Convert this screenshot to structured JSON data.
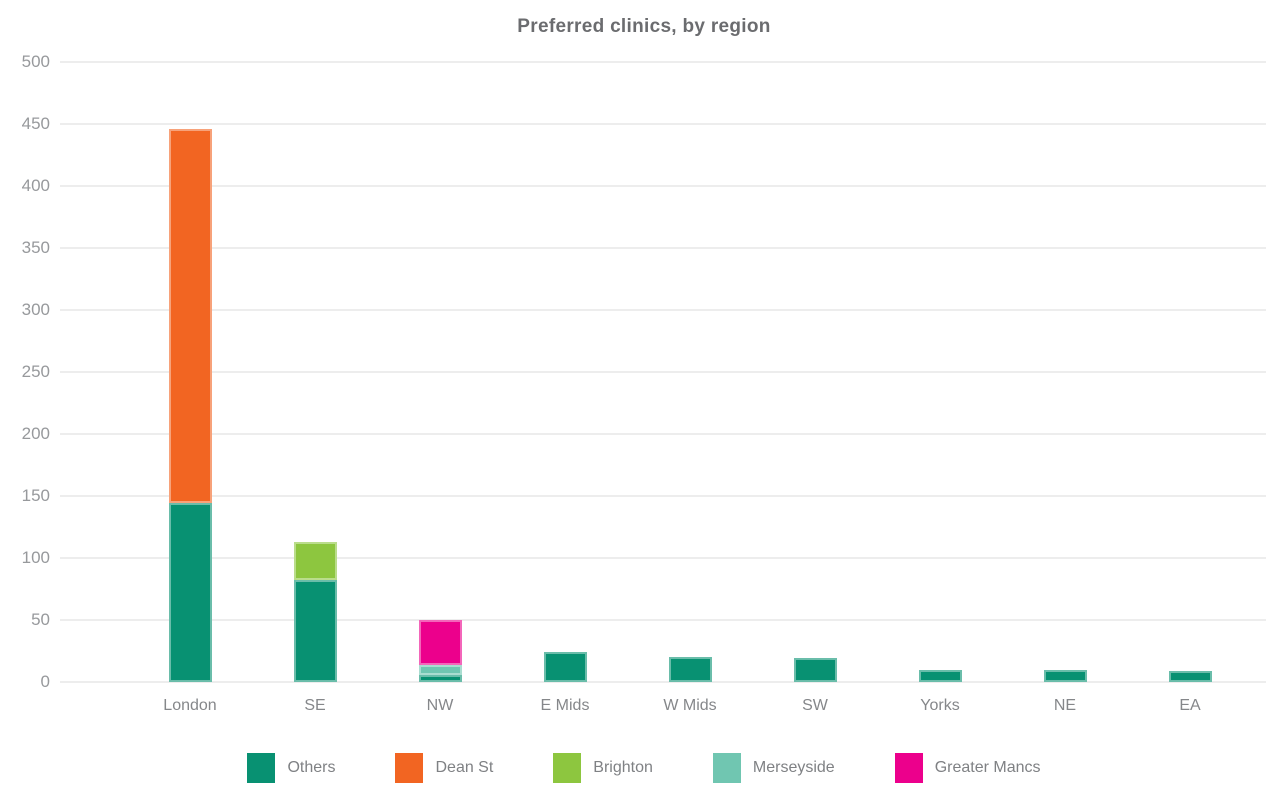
{
  "chart_data": {
    "type": "bar",
    "stacked": true,
    "title": "Preferred clinics, by region",
    "categories": [
      "London",
      "SE",
      "NW",
      "E Mids",
      "W Mids",
      "SW",
      "Yorks",
      "NE",
      "EA"
    ],
    "series": [
      {
        "name": "Others",
        "color": "#089172",
        "values": [
          144,
          82,
          6,
          24,
          20,
          19,
          10,
          10,
          9
        ]
      },
      {
        "name": "Dean St",
        "color": "#F26522",
        "values": [
          302,
          0,
          0,
          0,
          0,
          0,
          0,
          0,
          0
        ]
      },
      {
        "name": "Brighton",
        "color": "#8DC63F",
        "values": [
          0,
          31,
          0,
          0,
          0,
          0,
          0,
          0,
          0
        ]
      },
      {
        "name": "Merseyside",
        "color": "#70C6B1",
        "values": [
          0,
          0,
          8,
          0,
          0,
          0,
          0,
          0,
          0
        ]
      },
      {
        "name": "Greater Mancs",
        "color": "#EC008C",
        "values": [
          0,
          0,
          36,
          0,
          0,
          0,
          0,
          0,
          0
        ]
      }
    ],
    "totals": {
      "London": 446,
      "SE": 113,
      "NW": 50,
      "E Mids": 24,
      "W Mids": 20,
      "SW": 19,
      "Yorks": 10,
      "NE": 10,
      "EA": 9
    },
    "ylim": [
      0,
      500
    ],
    "yticks": [
      0,
      50,
      100,
      150,
      200,
      250,
      300,
      350,
      400,
      450,
      500
    ],
    "xlabel": "",
    "ylabel": "",
    "grid": true,
    "legend_position": "bottom",
    "colors": {
      "title_text": "#6b6c6f",
      "axis_text": "#97999c",
      "gridline": "#ededed",
      "background": "#ffffff"
    }
  }
}
